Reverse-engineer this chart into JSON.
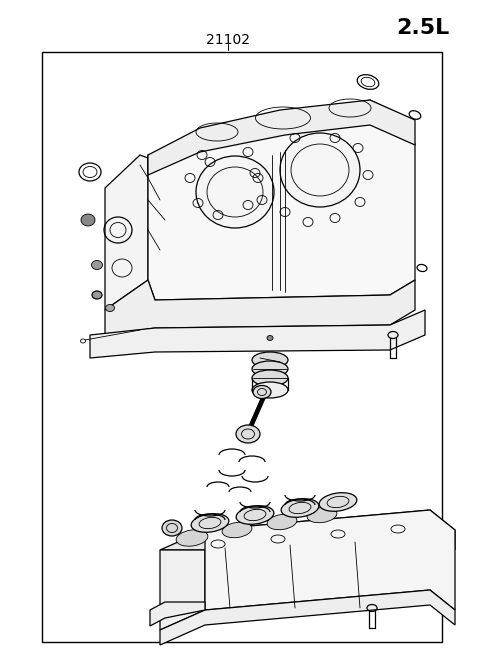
{
  "title_text": "2.5L",
  "part_number": "21102",
  "background_color": "#ffffff",
  "border_color": "#000000",
  "line_color": "#000000",
  "title_fontsize": 16,
  "part_number_fontsize": 10,
  "title_fontweight": "bold",
  "fig_width": 4.8,
  "fig_height": 6.57,
  "dpi": 100
}
